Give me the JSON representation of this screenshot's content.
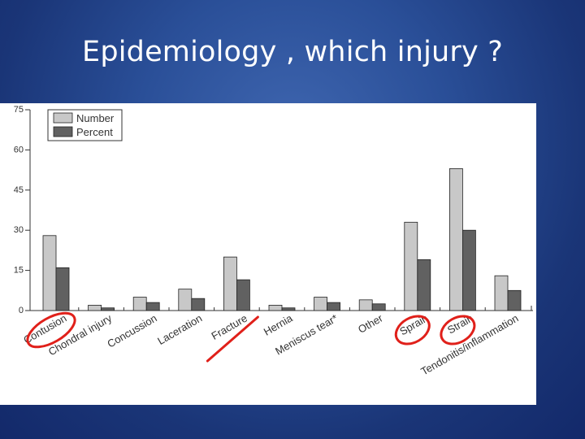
{
  "slide": {
    "title": "Epidemiology , which injury ?"
  },
  "chart_data": {
    "type": "bar",
    "categories": [
      "Contusion",
      "Chondral injury",
      "Concussion",
      "Laceration",
      "Fracture",
      "Hernia",
      "Meniscus tear*",
      "Other",
      "Sprain",
      "Strain",
      "Tendonitis/inflammation"
    ],
    "series": [
      {
        "name": "Number",
        "values": [
          28,
          2,
          5,
          8,
          20,
          2,
          5,
          4,
          33,
          53,
          13
        ],
        "color": "#c8c8c8"
      },
      {
        "name": "Percent",
        "values": [
          16,
          1,
          3,
          4.5,
          11.5,
          1,
          3,
          2.5,
          19,
          30,
          7.5
        ],
        "color": "#616161"
      }
    ],
    "yticks": [
      "0",
      "15",
      "30",
      "45",
      "60",
      "75"
    ],
    "ylim": [
      0,
      75
    ],
    "grid": false,
    "legend": "top-left",
    "circled_categories": [
      "Contusion",
      "Sprain",
      "Strain"
    ],
    "struck_categories": [
      "Fracture"
    ],
    "annotation_color": "#e0201a"
  }
}
